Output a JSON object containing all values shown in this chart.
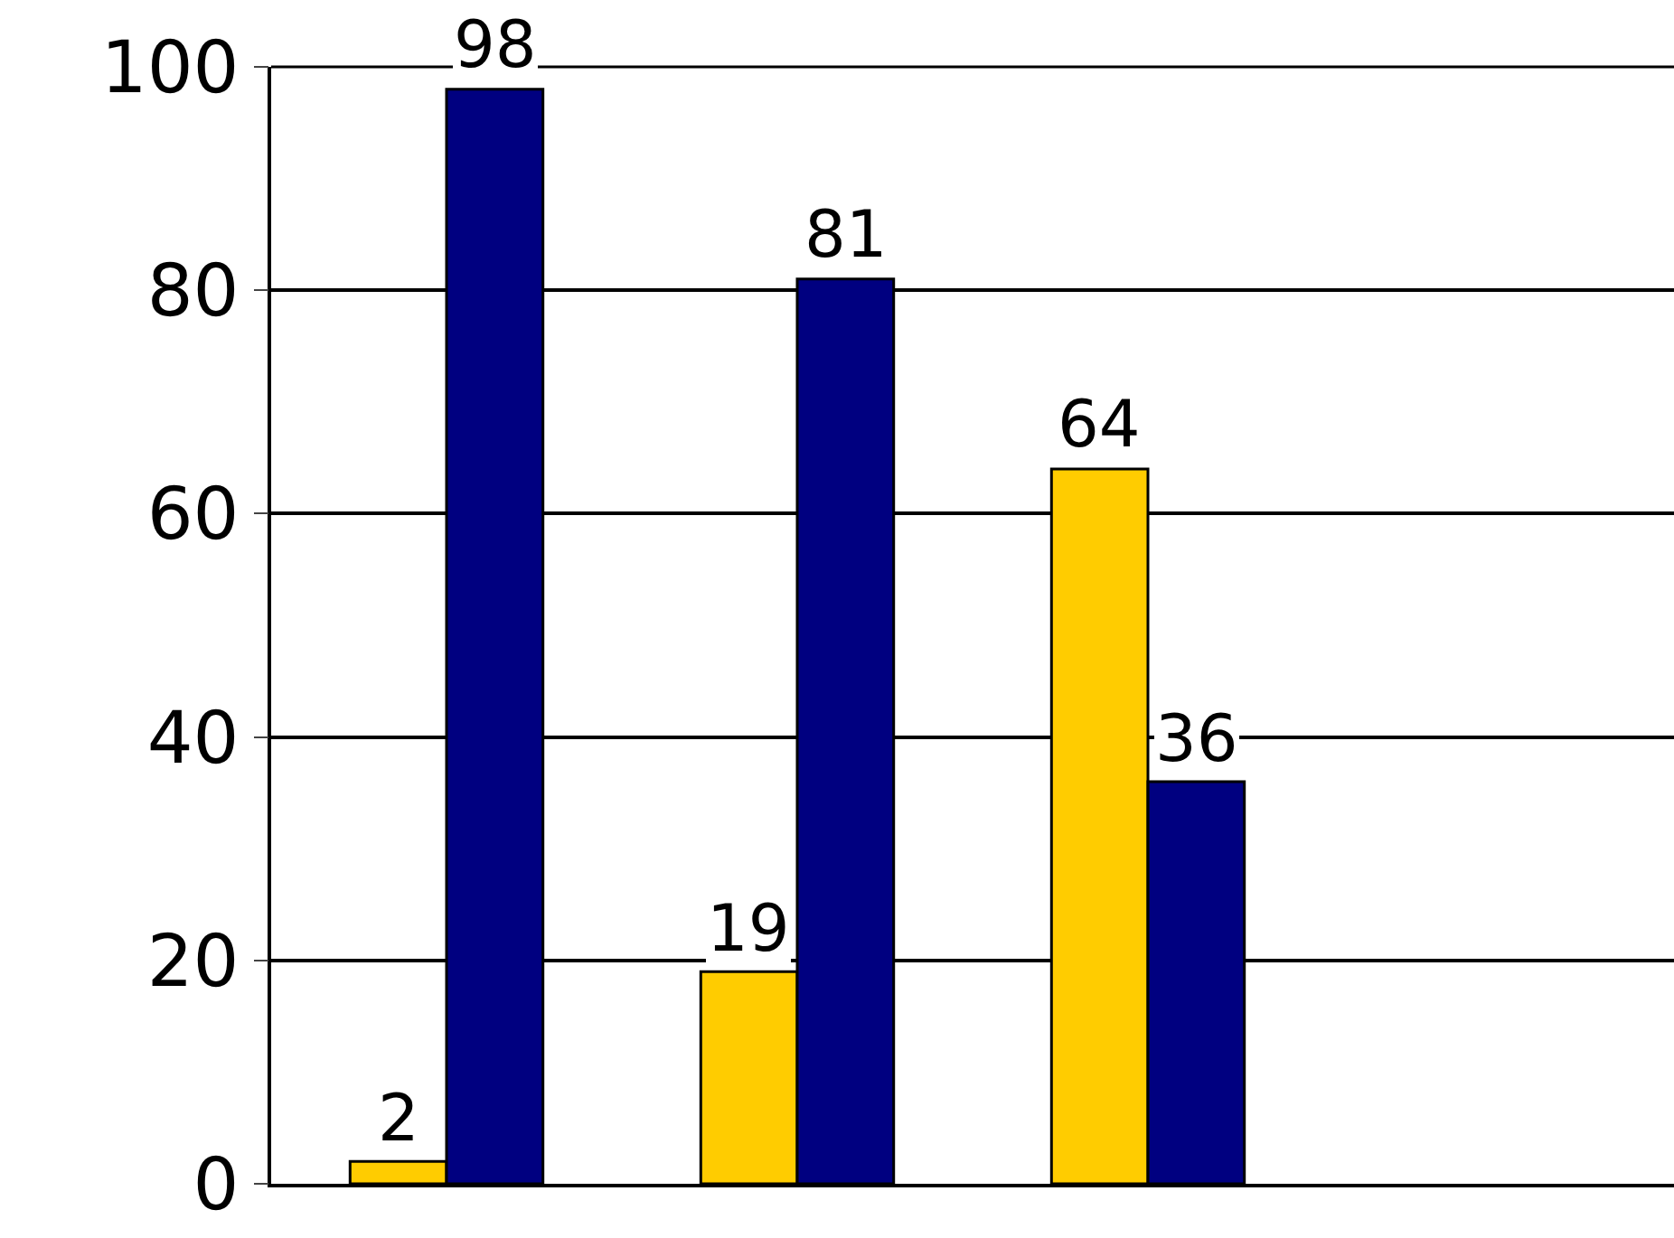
{
  "chart_data": {
    "type": "bar",
    "categories": [
      null,
      null,
      null,
      null
    ],
    "series": [
      {
        "color": "#ffcc00",
        "values": [
          2,
          19,
          64,
          null
        ]
      },
      {
        "color": "#000080",
        "values": [
          98,
          81,
          36,
          null
        ]
      }
    ],
    "ylim": [
      0,
      100
    ],
    "yticks": [
      0,
      20,
      40,
      60,
      80,
      100
    ],
    "grid": "y",
    "data_labels": true,
    "tick_labels": "y"
  }
}
